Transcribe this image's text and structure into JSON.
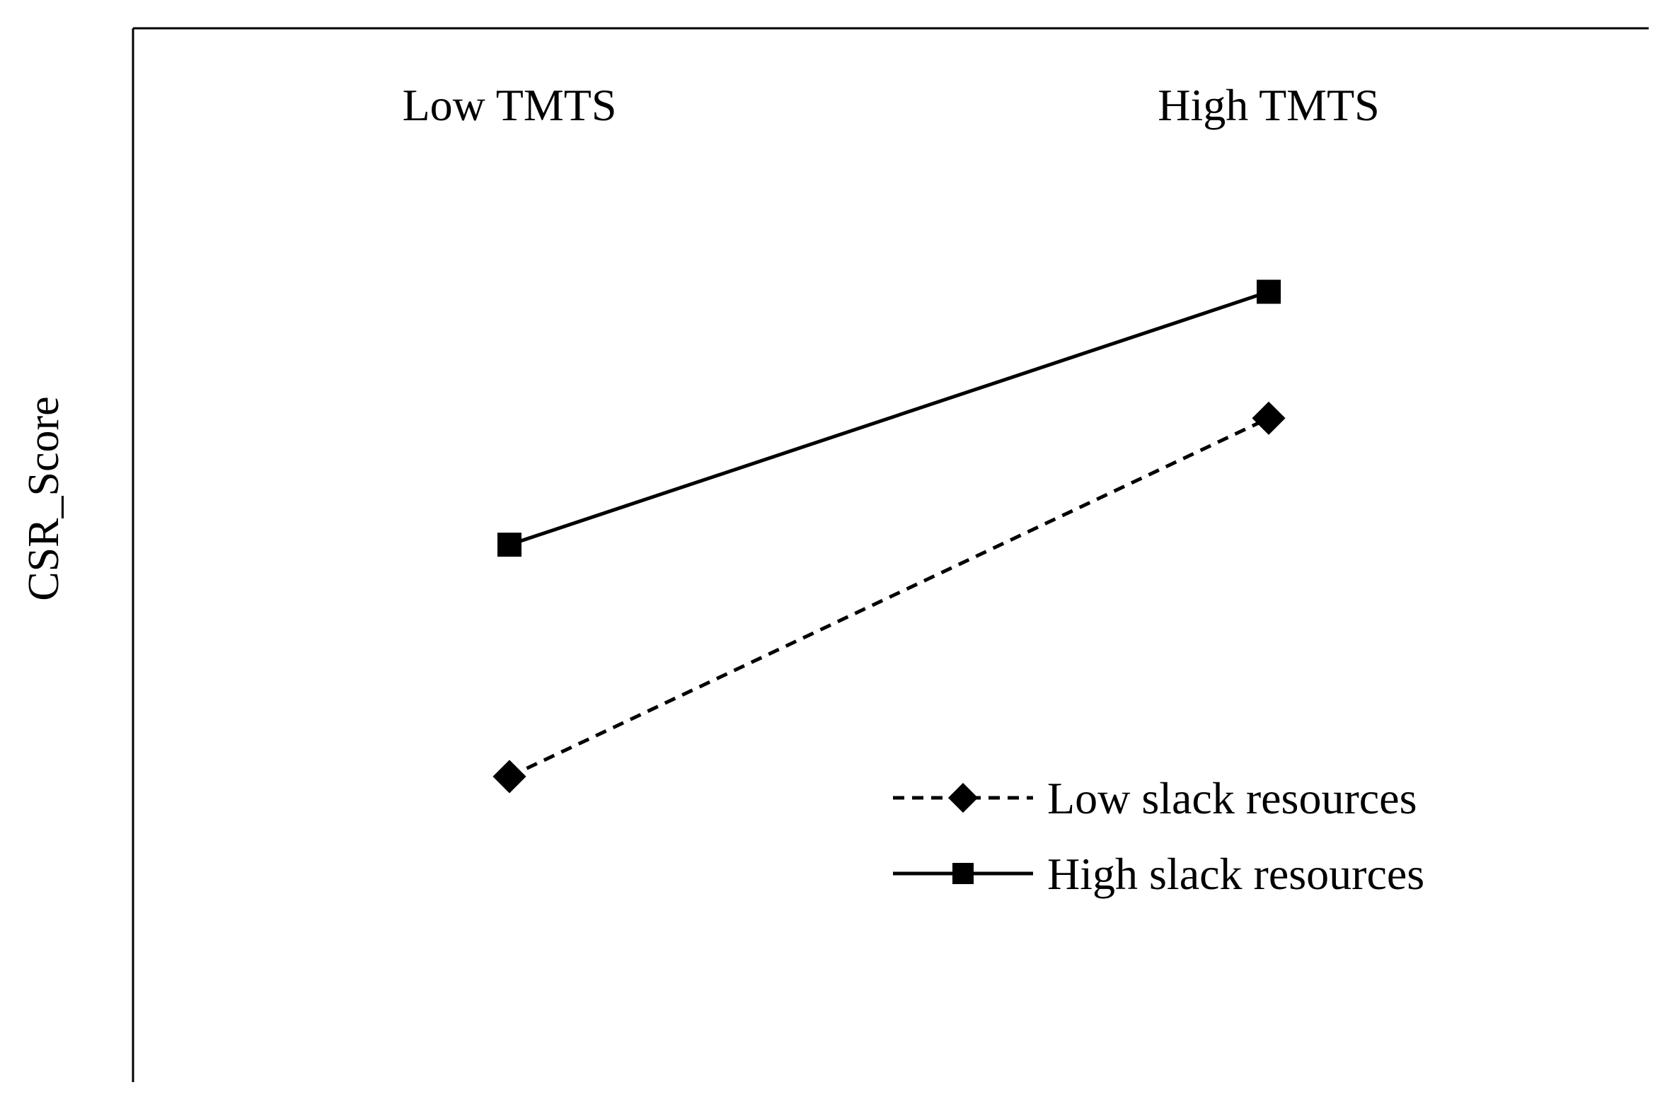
{
  "chart_data": {
    "type": "line",
    "title": "",
    "xlabel": "",
    "ylabel": "CSR_Score",
    "categories": [
      "Low TMTS",
      "High TMTS"
    ],
    "category_axis_position": "top",
    "y_ticks_shown": false,
    "ylim": [
      0,
      10
    ],
    "grid": false,
    "legend_position": "bottom-right",
    "series": [
      {
        "name": "Low slack resources",
        "values": [
          2.9,
          6.3
        ],
        "line_style": "dashed",
        "marker": "diamond",
        "color": "#000000"
      },
      {
        "name": "High slack resources",
        "values": [
          5.1,
          7.5
        ],
        "line_style": "solid",
        "marker": "square",
        "color": "#000000"
      }
    ]
  }
}
